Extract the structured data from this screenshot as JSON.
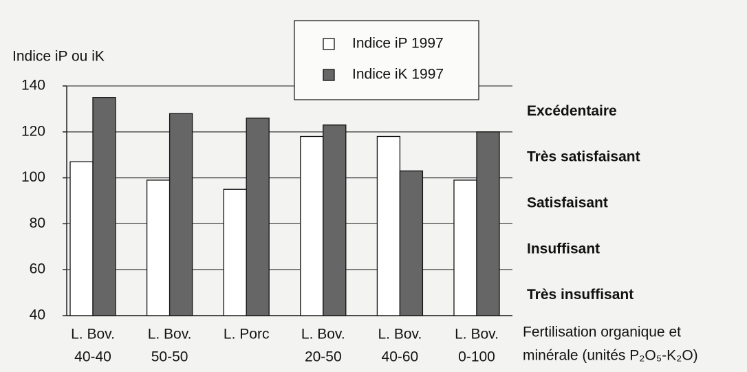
{
  "chart_data": {
    "type": "bar",
    "y_label": "Indice iP ou iK",
    "x_label": [
      "Fertilisation organique et",
      "minérale (unités P₂O₅-K₂O)"
    ],
    "categories": [
      [
        "L. Bov.",
        "40-40"
      ],
      [
        "L. Bov.",
        "50-50"
      ],
      [
        "L. Porc"
      ],
      [
        "L. Bov.",
        "20-50"
      ],
      [
        "L. Bov.",
        "40-60"
      ],
      [
        "L. Bov.",
        "0-100"
      ]
    ],
    "series": [
      {
        "name": "Indice iP 1997",
        "color": "#ffffff",
        "values": [
          107,
          99,
          95,
          118,
          118,
          99
        ]
      },
      {
        "name": "Indice iK 1997",
        "color": "#666666",
        "values": [
          135,
          128,
          126,
          123,
          103,
          120
        ]
      }
    ],
    "ylim": [
      40,
      140
    ],
    "yticks": [
      40,
      60,
      80,
      100,
      120,
      140
    ],
    "grid": true,
    "zones": [
      "Excédentaire",
      "Très satisfaisant",
      "Satisfaisant",
      "Insuffisant",
      "Très insuffisant"
    ]
  }
}
